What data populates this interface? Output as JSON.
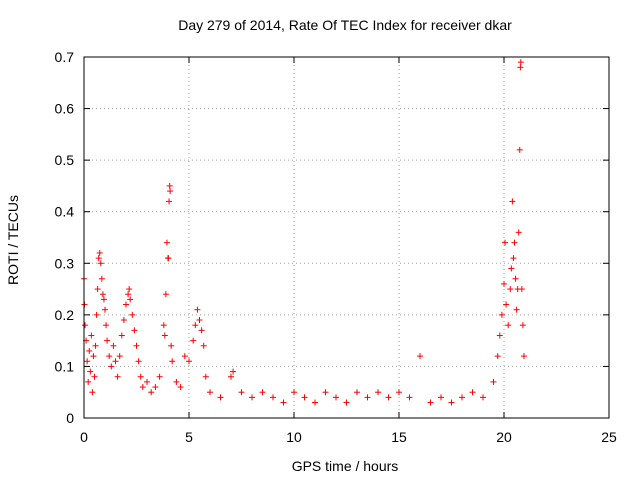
{
  "chart_data": {
    "type": "scatter",
    "title": "Day 279 of 2014, Rate Of TEC Index for receiver dkar",
    "xlabel": "GPS time / hours",
    "ylabel": "ROTI / TECUs",
    "xlim": [
      0,
      25
    ],
    "ylim": [
      0,
      0.7
    ],
    "xticks": [
      0,
      5,
      10,
      15,
      20,
      25
    ],
    "yticks": [
      0,
      0.1,
      0.2,
      0.3,
      0.4,
      0.5,
      0.6,
      0.7
    ],
    "grid": true,
    "marker": "+",
    "color": "#ff0000",
    "series": [
      {
        "values": [
          [
            0.0,
            0.27
          ],
          [
            0.02,
            0.22
          ],
          [
            0.05,
            0.18
          ],
          [
            0.1,
            0.15
          ],
          [
            0.15,
            0.11
          ],
          [
            0.2,
            0.07
          ],
          [
            0.25,
            0.13
          ],
          [
            0.3,
            0.09
          ],
          [
            0.35,
            0.16
          ],
          [
            0.4,
            0.05
          ],
          [
            0.45,
            0.12
          ],
          [
            0.5,
            0.08
          ],
          [
            0.55,
            0.14
          ],
          [
            0.6,
            0.2
          ],
          [
            0.65,
            0.25
          ],
          [
            0.7,
            0.31
          ],
          [
            0.75,
            0.32
          ],
          [
            0.8,
            0.3
          ],
          [
            0.85,
            0.27
          ],
          [
            0.9,
            0.24
          ],
          [
            0.95,
            0.23
          ],
          [
            1.0,
            0.21
          ],
          [
            1.05,
            0.18
          ],
          [
            1.1,
            0.15
          ],
          [
            1.2,
            0.12
          ],
          [
            1.3,
            0.1
          ],
          [
            1.4,
            0.14
          ],
          [
            1.5,
            0.11
          ],
          [
            1.6,
            0.08
          ],
          [
            1.7,
            0.12
          ],
          [
            1.8,
            0.16
          ],
          [
            1.9,
            0.19
          ],
          [
            2.0,
            0.22
          ],
          [
            2.1,
            0.24
          ],
          [
            2.15,
            0.25
          ],
          [
            2.2,
            0.23
          ],
          [
            2.3,
            0.2
          ],
          [
            2.4,
            0.17
          ],
          [
            2.5,
            0.14
          ],
          [
            2.6,
            0.11
          ],
          [
            2.7,
            0.08
          ],
          [
            2.8,
            0.06
          ],
          [
            3.0,
            0.07
          ],
          [
            3.2,
            0.05
          ],
          [
            3.4,
            0.06
          ],
          [
            3.6,
            0.08
          ],
          [
            3.8,
            0.18
          ],
          [
            3.85,
            0.16
          ],
          [
            3.9,
            0.24
          ],
          [
            3.95,
            0.34
          ],
          [
            4.0,
            0.31
          ],
          [
            4.02,
            0.31
          ],
          [
            4.05,
            0.42
          ],
          [
            4.08,
            0.45
          ],
          [
            4.1,
            0.44
          ],
          [
            4.15,
            0.14
          ],
          [
            4.2,
            0.11
          ],
          [
            4.4,
            0.07
          ],
          [
            4.6,
            0.06
          ],
          [
            4.8,
            0.12
          ],
          [
            5.0,
            0.11
          ],
          [
            5.2,
            0.15
          ],
          [
            5.3,
            0.18
          ],
          [
            5.4,
            0.21
          ],
          [
            5.5,
            0.19
          ],
          [
            5.6,
            0.17
          ],
          [
            5.7,
            0.14
          ],
          [
            5.8,
            0.08
          ],
          [
            6.0,
            0.05
          ],
          [
            6.5,
            0.04
          ],
          [
            7.0,
            0.08
          ],
          [
            7.1,
            0.09
          ],
          [
            7.5,
            0.05
          ],
          [
            8.0,
            0.04
          ],
          [
            8.5,
            0.05
          ],
          [
            9.0,
            0.04
          ],
          [
            9.5,
            0.03
          ],
          [
            10.0,
            0.05
          ],
          [
            10.5,
            0.04
          ],
          [
            11.0,
            0.03
          ],
          [
            11.5,
            0.05
          ],
          [
            12.0,
            0.04
          ],
          [
            12.5,
            0.03
          ],
          [
            13.0,
            0.05
          ],
          [
            13.5,
            0.04
          ],
          [
            14.0,
            0.05
          ],
          [
            14.5,
            0.04
          ],
          [
            15.0,
            0.05
          ],
          [
            15.5,
            0.04
          ],
          [
            16.0,
            0.12
          ],
          [
            16.5,
            0.03
          ],
          [
            17.0,
            0.04
          ],
          [
            17.5,
            0.03
          ],
          [
            18.0,
            0.04
          ],
          [
            18.5,
            0.05
          ],
          [
            19.0,
            0.04
          ],
          [
            19.5,
            0.07
          ],
          [
            19.7,
            0.12
          ],
          [
            19.8,
            0.16
          ],
          [
            19.9,
            0.2
          ],
          [
            20.0,
            0.26
          ],
          [
            20.05,
            0.34
          ],
          [
            20.1,
            0.22
          ],
          [
            20.2,
            0.18
          ],
          [
            20.3,
            0.25
          ],
          [
            20.35,
            0.29
          ],
          [
            20.4,
            0.42
          ],
          [
            20.45,
            0.31
          ],
          [
            20.5,
            0.34
          ],
          [
            20.55,
            0.27
          ],
          [
            20.6,
            0.21
          ],
          [
            20.65,
            0.25
          ],
          [
            20.7,
            0.36
          ],
          [
            20.75,
            0.52
          ],
          [
            20.78,
            0.68
          ],
          [
            20.8,
            0.69
          ],
          [
            20.85,
            0.25
          ],
          [
            20.9,
            0.18
          ],
          [
            20.95,
            0.12
          ]
        ]
      }
    ]
  }
}
